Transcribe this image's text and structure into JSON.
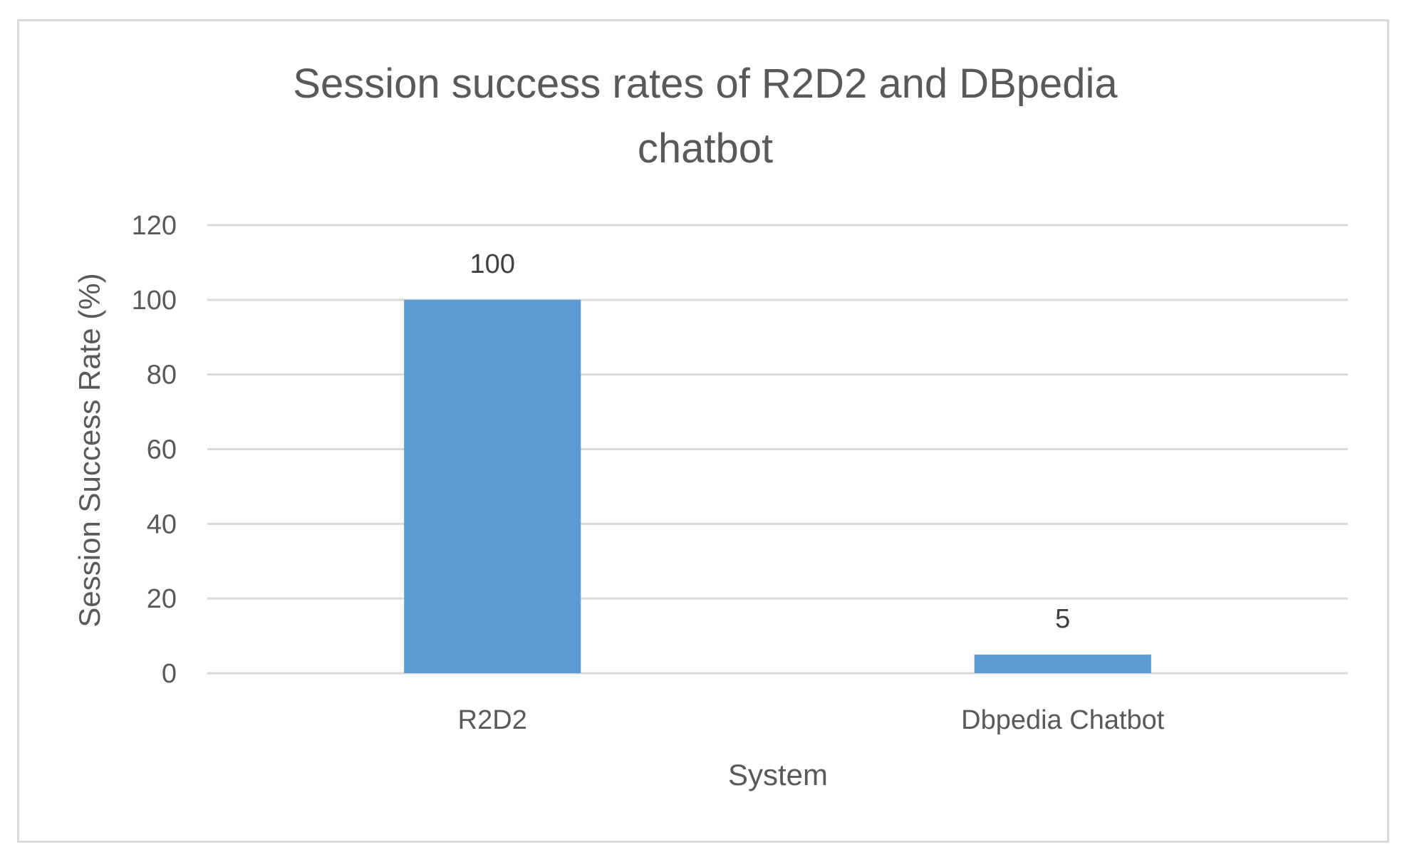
{
  "chart_data": {
    "type": "bar",
    "title_lines": [
      "Session success rates of R2D2 and DBpedia",
      "chatbot"
    ],
    "xlabel": "System",
    "ylabel": "Session Success Rate (%)",
    "categories": [
      "R2D2",
      "Dbpedia Chatbot"
    ],
    "values": [
      100,
      5
    ],
    "ylim": [
      0,
      120
    ],
    "yticks": [
      0,
      20,
      40,
      60,
      80,
      100,
      120
    ],
    "grid": true,
    "legend": "none",
    "bar_color": "#5b9bd5",
    "grid_color": "#d9d9d9",
    "text_color": "#595959"
  }
}
